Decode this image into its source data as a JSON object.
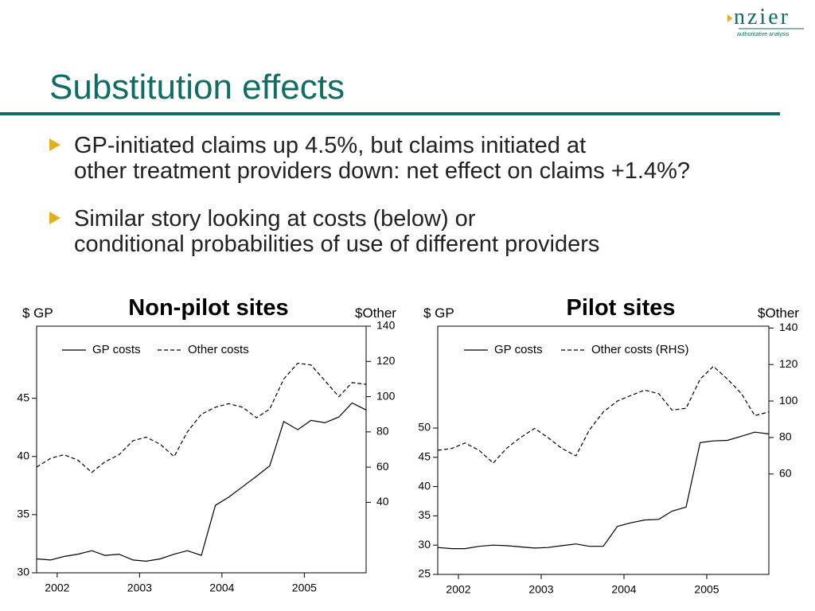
{
  "slide": {
    "title": "Substitution effects",
    "logo": "nzier",
    "logo_tagline": "authoritative analysis",
    "bullets": [
      "GP-initiated claims up 4.5%, but claims initiated at other treatment providers down: net effect on claims +1.4%?",
      "Similar story looking at costs (below) or conditional probabilities of use of different providers"
    ]
  },
  "chart_data": [
    {
      "type": "line",
      "title": "Non-pilot sites",
      "y_label": "$ GP",
      "y2_label": "$Other",
      "x": [
        2001.75,
        2001.92,
        2002.08,
        2002.25,
        2002.42,
        2002.58,
        2002.75,
        2002.92,
        2003.08,
        2003.25,
        2003.42,
        2003.58,
        2003.75,
        2003.92,
        2004.08,
        2004.25,
        2004.42,
        2004.58,
        2004.75,
        2004.92,
        2005.08,
        2005.25,
        2005.42,
        2005.58,
        2005.75
      ],
      "xlim": [
        2001.75,
        2005.75
      ],
      "xticks": [
        2002,
        2003,
        2004,
        2005
      ],
      "ylim": [
        30,
        51.2
      ],
      "yticks": [
        30,
        35,
        40,
        45
      ],
      "y2lim": [
        0,
        140
      ],
      "y2ticks": [
        40,
        60,
        80,
        100,
        120,
        140
      ],
      "series": [
        {
          "name": "GP costs",
          "color": "#000000",
          "line_style": "solid",
          "values": [
            31.2,
            31.1,
            31.4,
            31.6,
            31.9,
            31.5,
            31.6,
            31.1,
            31.0,
            31.2,
            31.6,
            31.9,
            31.5,
            35.8,
            36.5,
            37.4,
            38.3,
            39.2,
            43.0,
            42.3,
            43.1,
            42.9,
            43.4,
            44.6,
            44.0
          ]
        },
        {
          "name": "Other costs",
          "color": "#000000",
          "line_style": "dashed",
          "axis": "y2",
          "values": [
            60,
            65,
            67,
            64,
            57,
            63,
            67,
            75,
            77,
            73,
            66,
            80,
            90,
            94,
            96,
            94,
            88,
            93,
            110,
            119,
            118,
            109,
            100,
            108,
            107
          ]
        }
      ]
    },
    {
      "type": "line",
      "title": "Pilot sites",
      "y_label": "$ GP",
      "y2_label": "$Other",
      "x": [
        2001.75,
        2001.92,
        2002.08,
        2002.25,
        2002.42,
        2002.58,
        2002.75,
        2002.92,
        2003.08,
        2003.25,
        2003.42,
        2003.58,
        2003.75,
        2003.92,
        2004.08,
        2004.25,
        2004.42,
        2004.58,
        2004.75,
        2004.92,
        2005.08,
        2005.25,
        2005.42,
        2005.58,
        2005.75
      ],
      "xlim": [
        2001.75,
        2005.75
      ],
      "xticks": [
        2002,
        2003,
        2004,
        2005
      ],
      "ylim": [
        25,
        67.4
      ],
      "yticks": [
        25,
        30,
        35,
        40,
        45,
        50
      ],
      "y2lim": [
        5,
        141
      ],
      "y2ticks": [
        60,
        80,
        100,
        120,
        140
      ],
      "series": [
        {
          "name": "GP costs",
          "color": "#000000",
          "line_style": "solid",
          "values": [
            29.6,
            29.4,
            29.4,
            29.8,
            30.0,
            29.9,
            29.7,
            29.5,
            29.6,
            29.9,
            30.2,
            29.8,
            29.8,
            33.2,
            33.8,
            34.3,
            34.4,
            35.8,
            36.5,
            47.5,
            47.8,
            47.9,
            48.6,
            49.3,
            49.0
          ]
        },
        {
          "name": "Other costs (RHS)",
          "color": "#000000",
          "line_style": "dashed",
          "axis": "y2",
          "values": [
            73,
            74,
            77,
            73,
            66,
            74,
            80,
            85,
            80,
            74,
            70,
            84,
            94,
            100,
            103,
            106,
            104,
            95,
            96,
            112,
            119,
            112,
            104,
            92,
            94
          ]
        }
      ]
    }
  ]
}
